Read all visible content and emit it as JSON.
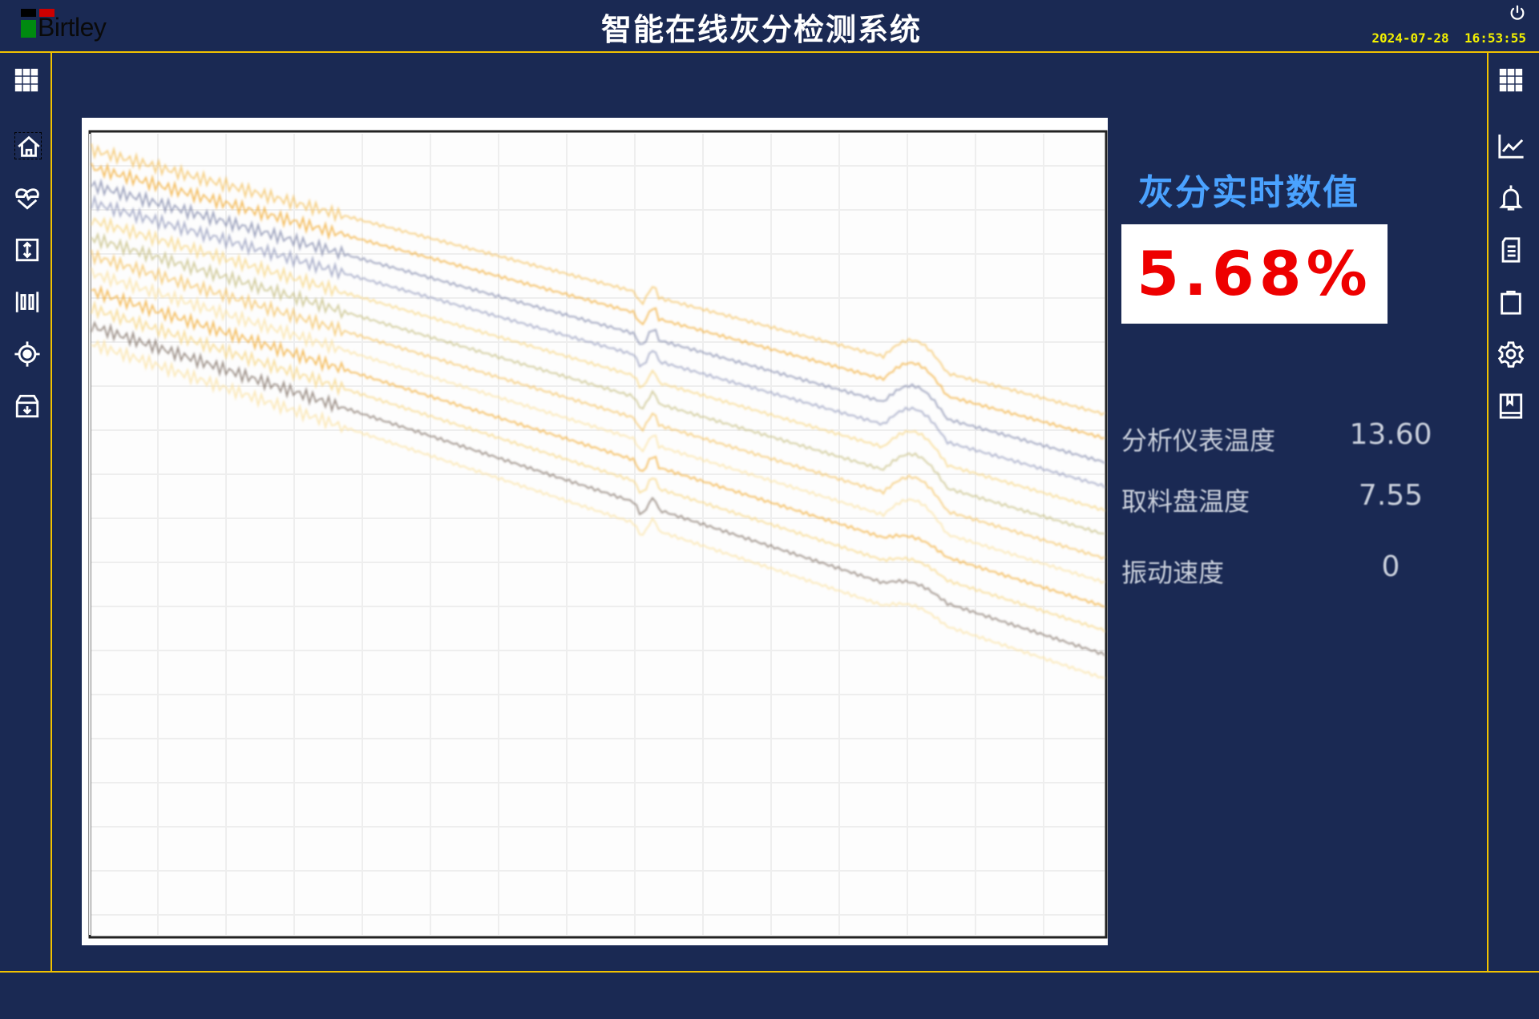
{
  "header": {
    "logo_text": "Birtley",
    "title": "智能在线灰分检测系统",
    "date": "2024-07-28",
    "time": "16:53:55"
  },
  "left_sidebar": [
    "apps-icon",
    "home-icon",
    "heart-pulse-icon",
    "resize-vertical-icon",
    "barcode-icon",
    "target-icon",
    "archive-download-icon"
  ],
  "right_sidebar": [
    "apps-icon",
    "line-chart-icon",
    "bell-icon",
    "document-icon",
    "clipboard-icon",
    "gear-icon",
    "book-icon"
  ],
  "realtime": {
    "title": "灰分实时数值",
    "value": "5.68%"
  },
  "metrics": [
    {
      "label": "分析仪表温度",
      "value": "13.60"
    },
    {
      "label": "取料盘温度",
      "value": "7.55"
    },
    {
      "label": "振动速度",
      "value": "0"
    }
  ],
  "colors": {
    "background": "#1a2953",
    "accent_line": "#f2c200",
    "title_blue": "#4aa2ff",
    "value_red": "#ee0000"
  }
}
